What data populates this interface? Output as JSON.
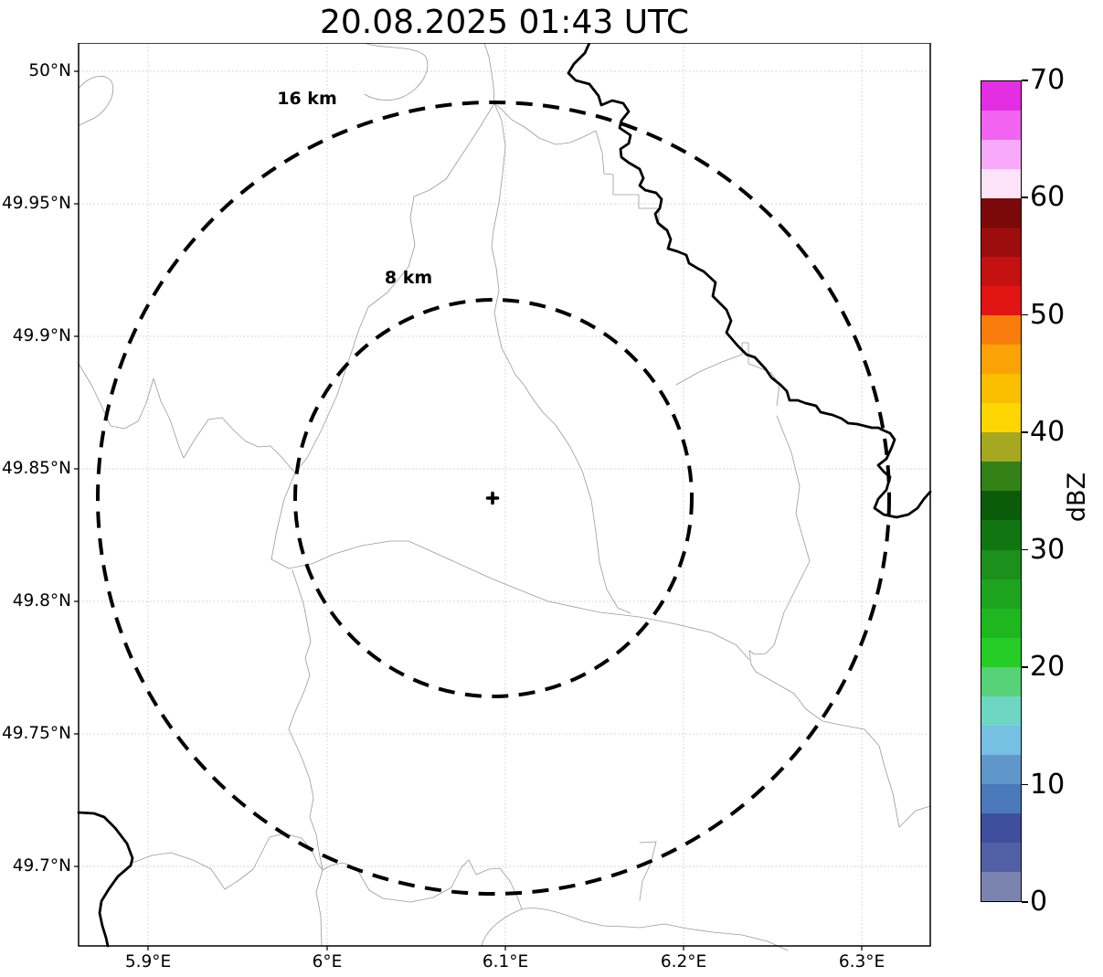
{
  "title": "20.08.2025 01:43 UTC",
  "map": {
    "yticks": [
      "50°N",
      "49.95°N",
      "49.9°N",
      "49.85°N",
      "49.8°N",
      "49.75°N",
      "49.7°N"
    ],
    "xticks": [
      "5.9°E",
      "6°E",
      "6.1°E",
      "6.2°E",
      "6.3°E"
    ],
    "range_rings": [
      {
        "label": "16 km",
        "radius_km": 16
      },
      {
        "label": "8 km",
        "radius_km": 8
      }
    ],
    "center_marker": "+"
  },
  "colorbar": {
    "label": "dBZ",
    "min": 0,
    "max": 70,
    "ticks": [
      "0",
      "10",
      "20",
      "30",
      "40",
      "50",
      "60",
      "70"
    ],
    "segment_colors_bottom_to_top": [
      "#7b84ae",
      "#5160a4",
      "#3f4f9d",
      "#4a79ba",
      "#5f97cb",
      "#76c0e4",
      "#6fd6c4",
      "#57d276",
      "#26cd26",
      "#1fb71f",
      "#1ea31e",
      "#1d8f1d",
      "#117511",
      "#0a5c0a",
      "#348117",
      "#a6a822",
      "#fdd500",
      "#f9be00",
      "#faa307",
      "#f87d0c",
      "#e31414",
      "#c41111",
      "#9c0d0d",
      "#7a0909",
      "#fce3f7",
      "#f9a9f9",
      "#f263f2",
      "#e32ee3"
    ]
  },
  "chart_data": {
    "type": "map",
    "title": "20.08.2025 01:43 UTC",
    "projection": "lat/lon grid",
    "x_tick_labels": [
      "5.9°E",
      "6°E",
      "6.1°E",
      "6.2°E",
      "6.3°E"
    ],
    "y_tick_labels": [
      "50°N",
      "49.95°N",
      "49.9°N",
      "49.85°N",
      "49.8°N",
      "49.75°N",
      "49.7°N"
    ],
    "range_rings_km": [
      16,
      8
    ],
    "ring_center": {
      "lon_deg_e": 6.09,
      "lat_deg_n": 49.84
    },
    "colorbar": {
      "label": "dBZ",
      "range": [
        0,
        70
      ],
      "tick_step": 10,
      "segment_step_dbz": 2.5
    },
    "grid": "dotted",
    "features": [
      "country border (thick black)",
      "administrative boundaries (thin gray)"
    ]
  }
}
